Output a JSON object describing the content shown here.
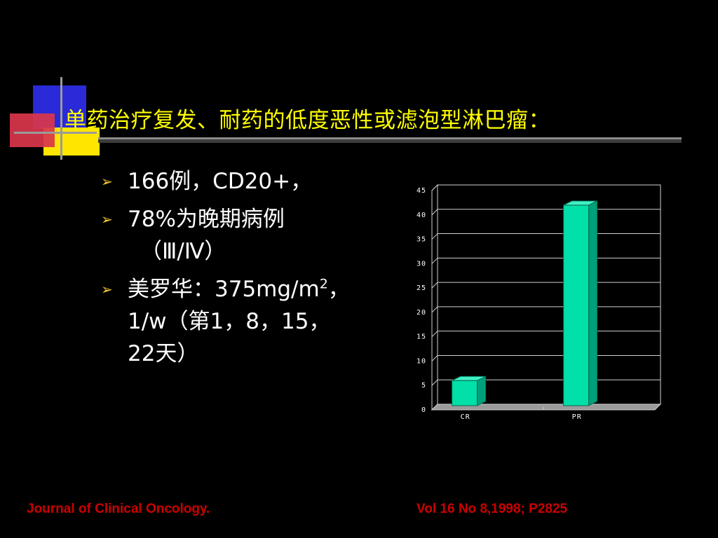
{
  "slide": {
    "title": "单药治疗复发、耐药的低度恶性或滤泡型淋巴瘤：",
    "bullets": [
      {
        "line1": "166例，CD20+，"
      },
      {
        "line1": "78%为晚期病例",
        "line2": "（Ⅲ/Ⅳ）"
      },
      {
        "line1_pre": "美罗华：375mg/m",
        "line1_sup": "2",
        "line1_post": "，",
        "line2": "1/w（第1，8，15，",
        "line3": "22天）"
      }
    ],
    "bullet_icon": "chevron-right-icon",
    "footer": {
      "left": "Journal of Clinical Oncology.",
      "right": "Vol 16 No 8,1998; P2825"
    },
    "colors": {
      "background": "#000000",
      "title": "#ffff00",
      "footer": "#cc0000",
      "bar": "#00e0a8",
      "bullet": "#ffcc33"
    }
  },
  "chart_data": {
    "type": "bar",
    "categories": [
      "CR",
      "PR"
    ],
    "values": [
      6,
      42
    ],
    "ylim": [
      0,
      45
    ],
    "yticks": [
      0,
      5,
      10,
      15,
      20,
      25,
      30,
      35,
      40,
      45
    ],
    "grid": true,
    "style": "3d"
  }
}
